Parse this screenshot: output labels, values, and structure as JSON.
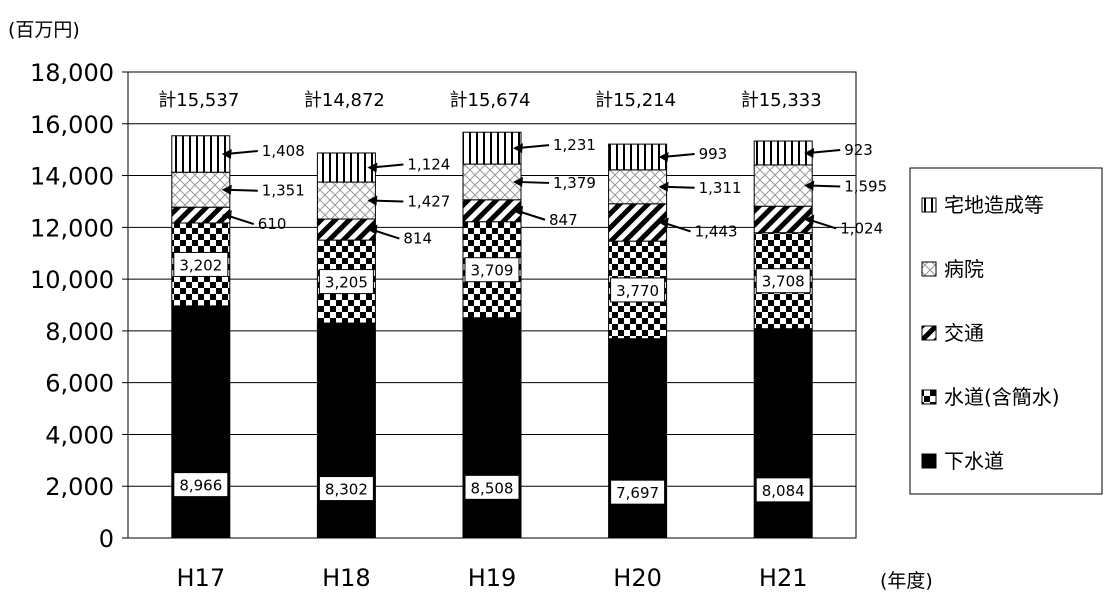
{
  "chart_data": {
    "type": "bar",
    "stacked": true,
    "title": "",
    "ylabel": "(百万円)",
    "xlabel": "(年度)",
    "ylim": [
      0,
      18000
    ],
    "yticks": [
      0,
      2000,
      4000,
      6000,
      8000,
      10000,
      12000,
      14000,
      16000,
      18000
    ],
    "ytick_labels": [
      "0",
      "2,000",
      "4,000",
      "6,000",
      "8,000",
      "10,000",
      "12,000",
      "14,000",
      "16,000",
      "18,000"
    ],
    "grid": true,
    "legend_position": "right",
    "categories": [
      "H17",
      "H18",
      "H19",
      "H20",
      "H21"
    ],
    "totals": [
      "計15,537",
      "計14,872",
      "計15,674",
      "計15,214",
      "計15,333"
    ],
    "series": [
      {
        "name": "下水道",
        "values": [
          8966,
          8302,
          8508,
          7697,
          8084
        ],
        "labels": [
          "8,966",
          "8,302",
          "8,508",
          "7,697",
          "8,084"
        ],
        "pattern": "solid"
      },
      {
        "name": "水道(含簡水)",
        "values": [
          3202,
          3205,
          3709,
          3770,
          3708
        ],
        "labels": [
          "3,202",
          "3,205",
          "3,709",
          "3,770",
          "3,708"
        ],
        "pattern": "checker"
      },
      {
        "name": "交通",
        "values": [
          610,
          814,
          847,
          1443,
          1024
        ],
        "labels": [
          "610",
          "814",
          "847",
          "1,443",
          "1,024"
        ],
        "pattern": "diagonal"
      },
      {
        "name": "病院",
        "values": [
          1351,
          1427,
          1379,
          1311,
          1595
        ],
        "labels": [
          "1,351",
          "1,427",
          "1,379",
          "1,311",
          "1,595"
        ],
        "pattern": "crosshatch"
      },
      {
        "name": "宅地造成等",
        "values": [
          1408,
          1124,
          1231,
          993,
          923
        ],
        "labels": [
          "1,408",
          "1,124",
          "1,231",
          "993",
          "923"
        ],
        "pattern": "vertical"
      }
    ],
    "legend_order": [
      "宅地造成等",
      "病院",
      "交通",
      "水道(含簡水)",
      "下水道"
    ]
  }
}
